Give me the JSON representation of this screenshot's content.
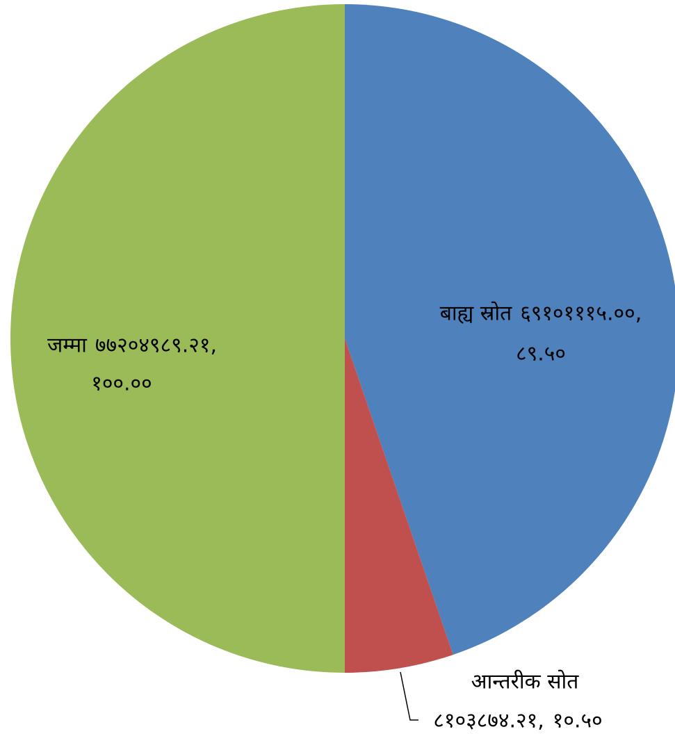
{
  "chart_data": {
    "type": "pie",
    "categories": [
      "बाह्य स्रोत",
      "आन्तरीक सोत",
      "जम्मा"
    ],
    "values": [
      89.5,
      10.5,
      100
    ],
    "value_labels": [
      "८९.५०",
      "१०.५०",
      "१००.००"
    ],
    "amounts": [
      69101115,
      8103874.21,
      77204989.21
    ],
    "amount_labels": [
      "६९१०१११५.००",
      "८१०३८७४.२१",
      "७७२०४९८९.२१"
    ],
    "label_separator": ",",
    "colors": [
      "#4f81bd",
      "#c0504d",
      "#9bbb59"
    ]
  }
}
